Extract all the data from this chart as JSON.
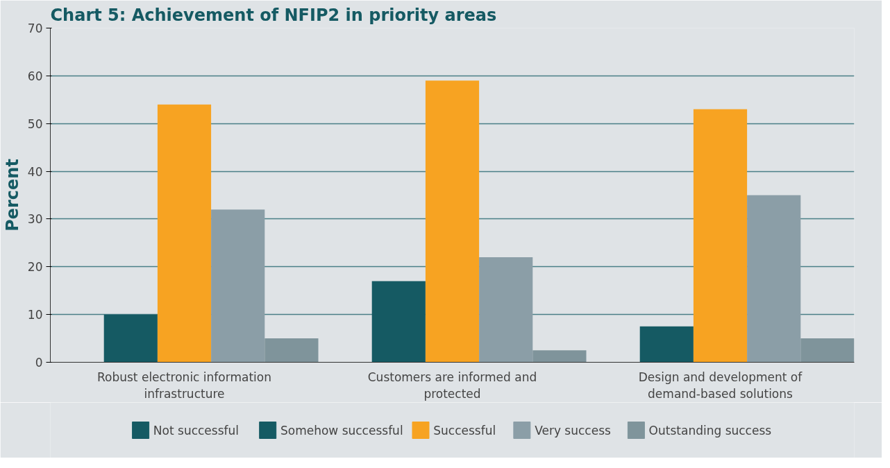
{
  "chart_data": {
    "type": "bar",
    "title": "Chart 5: Achievement of NFIP2 in priority areas",
    "ylabel": "Percent",
    "categories": [
      "Robust electronic information infrastructure",
      "Customers are informed and protected",
      "Design and development of demand-based solutions"
    ],
    "series": [
      {
        "name": "Not successful",
        "color": "#155a63",
        "values": [
          0,
          0,
          0
        ]
      },
      {
        "name": "Somehow successful",
        "color": "#155a63",
        "values": [
          10,
          17,
          7.5
        ]
      },
      {
        "name": "Successful",
        "color": "#f7a322",
        "values": [
          54,
          59,
          53
        ]
      },
      {
        "name": "Very success",
        "color": "#8b9ea7",
        "values": [
          32,
          22,
          35
        ]
      },
      {
        "name": "Outstanding success",
        "color": "#7f949b",
        "values": [
          5,
          2.5,
          5
        ]
      }
    ],
    "ylim": [
      0,
      70
    ],
    "yticks": [
      0,
      10,
      20,
      30,
      40,
      50,
      60,
      70
    ],
    "grid": "y",
    "legend": "bottom"
  }
}
